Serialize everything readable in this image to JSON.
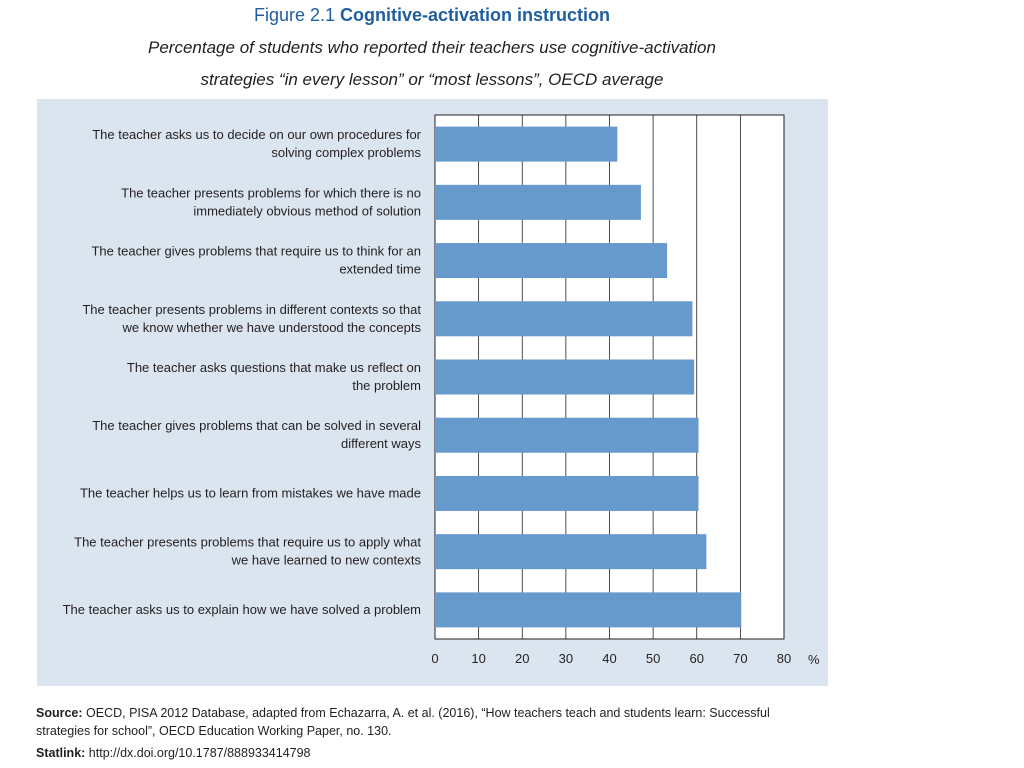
{
  "figure": {
    "number": "Figure 2.1",
    "title": "Cognitive-activation instruction",
    "subtitle_line1": "Percentage of students who reported their teachers use cognitive-activation",
    "subtitle_line2": "strategies “in every lesson” or “most lessons”, OECD average"
  },
  "chart_data": {
    "type": "bar",
    "orientation": "horizontal",
    "title": "Cognitive-activation instruction",
    "xlabel": "%",
    "ylabel": "",
    "xlim": [
      0,
      80
    ],
    "ticks": [
      0,
      10,
      20,
      30,
      40,
      50,
      60,
      70,
      80
    ],
    "tick_unit": "%",
    "grid": true,
    "bar_color": "#6699cc",
    "categories": [
      [
        "The teacher asks us to decide on our own procedures for",
        "solving complex problems"
      ],
      [
        "The teacher presents problems for which there is no",
        "immediately obvious method of solution"
      ],
      [
        "The teacher gives problems that require us to think for an",
        "extended time"
      ],
      [
        "The teacher presents problems in different contexts so that",
        "we know whether we have understood the concepts"
      ],
      [
        "The teacher asks questions that make us reflect on",
        "the problem"
      ],
      [
        "The teacher gives problems that can be solved in several",
        "different ways"
      ],
      [
        "The teacher helps us to learn from mistakes we have made"
      ],
      [
        "The teacher presents problems that require us to apply what",
        "we have learned to new contexts"
      ],
      [
        "The teacher asks us to explain how we have solved a problem"
      ]
    ],
    "values": [
      41.8,
      47.2,
      53.2,
      59.0,
      59.4,
      60.4,
      60.4,
      62.2,
      70.2
    ]
  },
  "source": {
    "label": "Source:",
    "text_line1": "OECD, PISA 2012 Database, adapted from Echazarra, A. et al. (2016), “How teachers teach and students learn: Successful",
    "text_line2": "strategies for school”, OECD Education Working Paper, no. 130."
  },
  "statlink": {
    "label": "Statlink:",
    "url": "http://dx.doi.org/10.1787/888933414798"
  }
}
